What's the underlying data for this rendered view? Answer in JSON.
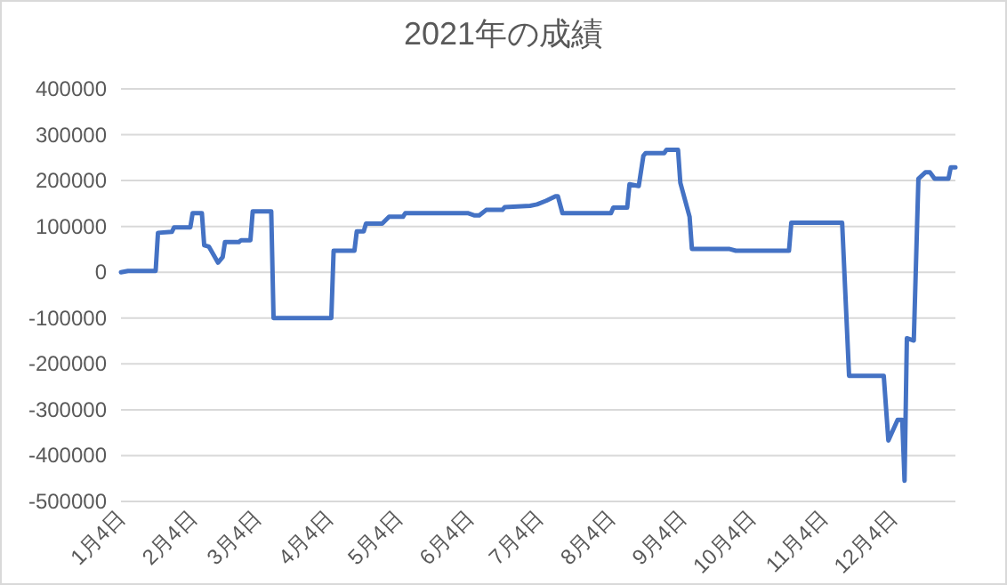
{
  "chart_data": {
    "type": "line",
    "title": "2021年の成績",
    "grid": "y",
    "marker": "none",
    "line_style": "solid",
    "x": [
      "2021-01-04",
      "2021-01-07",
      "2021-01-19",
      "2021-01-20",
      "2021-01-26",
      "2021-01-27",
      "2021-02-03",
      "2021-02-04",
      "2021-02-08",
      "2021-02-09",
      "2021-02-11",
      "2021-02-15",
      "2021-02-17",
      "2021-02-18",
      "2021-02-24",
      "2021-02-25",
      "2021-03-01",
      "2021-03-02",
      "2021-03-10",
      "2021-03-11",
      "2021-04-05",
      "2021-04-06",
      "2021-04-15",
      "2021-04-16",
      "2021-04-19",
      "2021-04-20",
      "2021-04-27",
      "2021-04-30",
      "2021-05-06",
      "2021-05-07",
      "2021-06-03",
      "2021-06-06",
      "2021-06-08",
      "2021-06-11",
      "2021-06-18",
      "2021-06-19",
      "2021-06-30",
      "2021-07-03",
      "2021-07-07",
      "2021-07-11",
      "2021-07-12",
      "2021-07-14",
      "2021-08-04",
      "2021-08-05",
      "2021-08-11",
      "2021-08-12",
      "2021-08-16",
      "2021-08-18",
      "2021-08-19",
      "2021-08-27",
      "2021-08-28",
      "2021-09-02",
      "2021-09-03",
      "2021-09-07",
      "2021-09-08",
      "2021-09-24",
      "2021-09-27",
      "2021-10-20",
      "2021-10-21",
      "2021-11-12",
      "2021-11-15",
      "2021-11-30",
      "2021-12-02",
      "2021-12-06",
      "2021-12-08",
      "2021-12-09",
      "2021-12-10",
      "2021-12-13",
      "2021-12-15",
      "2021-12-18",
      "2021-12-20",
      "2021-12-22",
      "2021-12-28",
      "2021-12-29",
      "2021-12-31"
    ],
    "series": [
      {
        "color": "#4472c4",
        "values": [
          0,
          3000,
          3000,
          86000,
          88000,
          98000,
          98000,
          129000,
          129000,
          59000,
          56000,
          21000,
          33000,
          66000,
          66000,
          70000,
          70000,
          133000,
          133000,
          -100000,
          -100000,
          47000,
          47000,
          89000,
          89000,
          106000,
          106000,
          121000,
          121000,
          129000,
          129000,
          124000,
          124000,
          136000,
          136000,
          142000,
          145000,
          148000,
          156000,
          166000,
          166000,
          129000,
          129000,
          141000,
          141000,
          192000,
          188000,
          254000,
          260000,
          260000,
          267000,
          267000,
          195000,
          121000,
          51000,
          51000,
          47000,
          47000,
          108000,
          108000,
          -226000,
          -226000,
          -367000,
          -322000,
          -322000,
          -455000,
          -144000,
          -149000,
          204000,
          218000,
          218000,
          204000,
          204000,
          229000,
          229000
        ]
      }
    ],
    "xlim": [
      "2021-01-04",
      "2021-12-31"
    ],
    "xticks": [
      {
        "value": "2021-01-04",
        "label": "1月4日"
      },
      {
        "value": "2021-02-04",
        "label": "2月4日"
      },
      {
        "value": "2021-03-04",
        "label": "3月4日"
      },
      {
        "value": "2021-04-04",
        "label": "4月4日"
      },
      {
        "value": "2021-05-04",
        "label": "5月4日"
      },
      {
        "value": "2021-06-04",
        "label": "6月4日"
      },
      {
        "value": "2021-07-04",
        "label": "7月4日"
      },
      {
        "value": "2021-08-04",
        "label": "8月4日"
      },
      {
        "value": "2021-09-04",
        "label": "9月4日"
      },
      {
        "value": "2021-10-04",
        "label": "10月4日"
      },
      {
        "value": "2021-11-04",
        "label": "11月4日"
      },
      {
        "value": "2021-12-04",
        "label": "12月4日"
      }
    ],
    "ylim": [
      -500000,
      400000
    ],
    "yticks": [
      -500000,
      -400000,
      -300000,
      -200000,
      -100000,
      0,
      100000,
      200000,
      300000,
      400000
    ]
  }
}
